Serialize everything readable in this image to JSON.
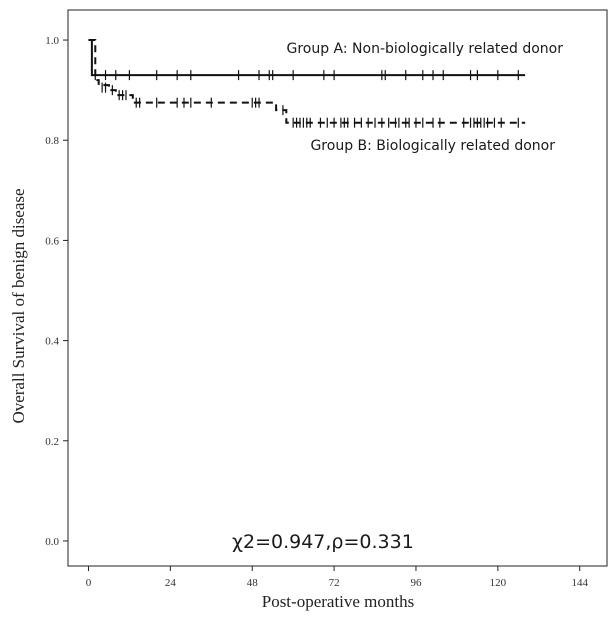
{
  "chart_data": {
    "type": "line",
    "subtype": "kaplan-meier",
    "xlabel": "Post-operative months",
    "ylabel": "Overall  Survival of benign disease",
    "xlim": [
      -6,
      152
    ],
    "ylim": [
      -0.05,
      1.06
    ],
    "xticks": [
      0,
      24,
      48,
      72,
      96,
      120,
      144
    ],
    "yticks": [
      0.0,
      0.2,
      0.4,
      0.6,
      0.8,
      1.0
    ],
    "ytick_labels": [
      "0.0",
      "0.2",
      "0.4",
      "0.6",
      "0.8",
      "1.0"
    ],
    "grid": false,
    "legend": "none",
    "series": [
      {
        "name": "Group A: Non-biologically related donor",
        "line_style": "solid",
        "steps": [
          [
            0,
            1.0
          ],
          [
            1,
            0.93
          ],
          [
            128,
            0.93
          ]
        ],
        "censored": [
          [
            2,
            0.93
          ],
          [
            5,
            0.93
          ],
          [
            8,
            0.93
          ],
          [
            12,
            0.93
          ],
          [
            20,
            0.93
          ],
          [
            26,
            0.93
          ],
          [
            30,
            0.93
          ],
          [
            44,
            0.93
          ],
          [
            50,
            0.93
          ],
          [
            53,
            0.93
          ],
          [
            54,
            0.93
          ],
          [
            60,
            0.93
          ],
          [
            69,
            0.93
          ],
          [
            72,
            0.93
          ],
          [
            86,
            0.93
          ],
          [
            87,
            0.93
          ],
          [
            93,
            0.93
          ],
          [
            98,
            0.93
          ],
          [
            101,
            0.93
          ],
          [
            104,
            0.93
          ],
          [
            112,
            0.93
          ],
          [
            114,
            0.93
          ],
          [
            120,
            0.93
          ],
          [
            126,
            0.93
          ]
        ]
      },
      {
        "name": "Group B: Biologically related donor",
        "line_style": "dashed",
        "steps": [
          [
            0,
            1.0
          ],
          [
            2,
            0.92
          ],
          [
            3,
            0.91
          ],
          [
            6,
            0.9
          ],
          [
            8,
            0.89
          ],
          [
            13,
            0.875
          ],
          [
            55,
            0.86
          ],
          [
            58,
            0.835
          ],
          [
            128,
            0.835
          ]
        ],
        "censored": [
          [
            4,
            0.905
          ],
          [
            5,
            0.905
          ],
          [
            7,
            0.9
          ],
          [
            9,
            0.89
          ],
          [
            10,
            0.89
          ],
          [
            11,
            0.89
          ],
          [
            14,
            0.875
          ],
          [
            15,
            0.875
          ],
          [
            20,
            0.875
          ],
          [
            26,
            0.875
          ],
          [
            28,
            0.875
          ],
          [
            30,
            0.875
          ],
          [
            36,
            0.875
          ],
          [
            48,
            0.875
          ],
          [
            49,
            0.875
          ],
          [
            50,
            0.875
          ],
          [
            57,
            0.86
          ],
          [
            60,
            0.835
          ],
          [
            61,
            0.835
          ],
          [
            62,
            0.835
          ],
          [
            63,
            0.835
          ],
          [
            64,
            0.835
          ],
          [
            65,
            0.835
          ],
          [
            68,
            0.835
          ],
          [
            70,
            0.835
          ],
          [
            72,
            0.835
          ],
          [
            74,
            0.835
          ],
          [
            75,
            0.835
          ],
          [
            76,
            0.835
          ],
          [
            78,
            0.835
          ],
          [
            80,
            0.835
          ],
          [
            82,
            0.835
          ],
          [
            84,
            0.835
          ],
          [
            86,
            0.835
          ],
          [
            88,
            0.835
          ],
          [
            90,
            0.835
          ],
          [
            91,
            0.835
          ],
          [
            93,
            0.835
          ],
          [
            94,
            0.835
          ],
          [
            96,
            0.835
          ],
          [
            98,
            0.835
          ],
          [
            101,
            0.835
          ],
          [
            103,
            0.835
          ],
          [
            110,
            0.835
          ],
          [
            112,
            0.835
          ],
          [
            113,
            0.835
          ],
          [
            114,
            0.835
          ],
          [
            115,
            0.835
          ],
          [
            116,
            0.835
          ],
          [
            117,
            0.835
          ],
          [
            119,
            0.835
          ],
          [
            121,
            0.835
          ],
          [
            126,
            0.835
          ]
        ]
      }
    ],
    "annotations": {
      "group_a": "Group A: Non-biologically related donor",
      "group_b": "Group B: Biologically related donor",
      "statistic": "χ2=0.947,ρ=0.331"
    }
  }
}
